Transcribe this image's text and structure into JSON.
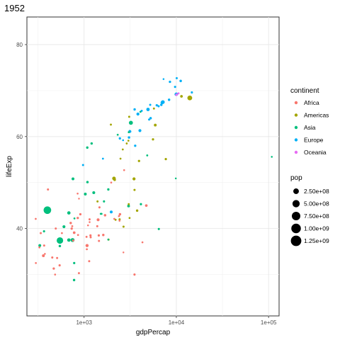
{
  "chart_data": {
    "type": "scatter",
    "title": "1952",
    "xlabel": "gdpPercap",
    "ylabel": "lifeExp",
    "x_scale": "log10",
    "xlim": [
      240,
      130000
    ],
    "ylim": [
      21,
      86
    ],
    "x_ticks": [
      {
        "value": 1000,
        "label": "1e+03"
      },
      {
        "value": 10000,
        "label": "1e+04"
      },
      {
        "value": 100000,
        "label": "1e+05"
      }
    ],
    "y_ticks": [
      {
        "value": 40,
        "label": "40"
      },
      {
        "value": 60,
        "label": "60"
      },
      {
        "value": 80,
        "label": "80"
      }
    ],
    "grid": true,
    "legend_placement": "right",
    "color_legend": {
      "title": "continent",
      "items": [
        {
          "name": "Africa",
          "color": "#F8766D"
        },
        {
          "name": "Americas",
          "color": "#A3A500"
        },
        {
          "name": "Asia",
          "color": "#00BF7D"
        },
        {
          "name": "Europe",
          "color": "#00B0F6"
        },
        {
          "name": "Oceania",
          "color": "#E76BF3"
        }
      ]
    },
    "size_legend": {
      "title": "pop",
      "items": [
        {
          "label": "2.50e+08",
          "value": 250000000
        },
        {
          "label": "5.00e+08",
          "value": 500000000
        },
        {
          "label": "7.50e+08",
          "value": 750000000
        },
        {
          "label": "1.00e+09",
          "value": 1000000000
        },
        {
          "label": "1.25e+09",
          "value": 1250000000
        }
      ]
    },
    "series": [
      {
        "name": "Africa",
        "color": "#F8766D",
        "points": [
          [
            2449,
            43.1,
            9300000.0
          ],
          [
            3521,
            30.0,
            4200000.0
          ],
          [
            1063,
            38.2,
            1700000.0
          ],
          [
            851,
            47.6,
            400000.0
          ],
          [
            543,
            32.0,
            4500000.0
          ],
          [
            339,
            39.0,
            2400000.0
          ],
          [
            1173,
            38.5,
            5000000.0
          ],
          [
            1071,
            35.5,
            1300000.0
          ],
          [
            1179,
            38.1,
            2700000.0
          ],
          [
            1103,
            40.7,
            150000.0
          ],
          [
            781,
            39.1,
            14100000.0
          ],
          [
            2126,
            42.1,
            850000.0
          ],
          [
            1389,
            40.5,
            3000000.0
          ],
          [
            2670,
            34.8,
            60000.0
          ],
          [
            1419,
            41.9,
            22200000.0
          ],
          [
            376,
            34.5,
            200000.0
          ],
          [
            328,
            35.9,
            1400000.0
          ],
          [
            362,
            34.1,
            20900000.0
          ],
          [
            4293,
            37.0,
            420000.0
          ],
          [
            485,
            30.0,
            280000.0
          ],
          [
            911,
            43.1,
            5600000.0
          ],
          [
            510,
            33.6,
            2700000.0
          ],
          [
            300,
            32.5,
            580000.0
          ],
          [
            854,
            42.3,
            6500000.0
          ],
          [
            299,
            42.1,
            750000.0
          ],
          [
            575,
            39.0,
            860000.0
          ],
          [
            2388,
            42.7,
            1000000.0
          ],
          [
            1443,
            38.5,
            4800000.0
          ],
          [
            369,
            36.3,
            2900000.0
          ],
          [
            452,
            33.7,
            3800000.0
          ],
          [
            744,
            40.5,
            1000000.0
          ],
          [
            1968,
            50.0,
            520000.0
          ],
          [
            1688,
            42.9,
            9900000.0
          ],
          [
            469,
            31.3,
            6400000.0
          ],
          [
            2423,
            41.7,
            490000.0
          ],
          [
            762,
            37.4,
            3400000.0
          ],
          [
            1077,
            36.3,
            33100000.0
          ],
          [
            2718,
            52.7,
            260000.0
          ],
          [
            493,
            40.0,
            2500000.0
          ],
          [
            880,
            46.5,
            60000.0
          ],
          [
            1450,
            37.3,
            2800000.0
          ],
          [
            879,
            30.3,
            2100000.0
          ],
          [
            1136,
            32.9,
            2500000.0
          ],
          [
            4725,
            45.0,
            14300000.0
          ],
          [
            1615,
            38.6,
            8500000.0
          ],
          [
            1148,
            41.4,
            290000.0
          ],
          [
            716,
            41.2,
            8300000.0
          ],
          [
            860,
            38.6,
            1200000.0
          ],
          [
            1468,
            44.6,
            3600000.0
          ],
          [
            734,
            39.98,
            5800000.0
          ],
          [
            1147,
            42.0,
            2700000.0
          ],
          [
            406,
            48.5,
            3100000.0
          ]
        ]
      },
      {
        "name": "Americas",
        "color": "#A3A500",
        "points": [
          [
            5911,
            62.5,
            17900000.0
          ],
          [
            2677,
            40.4,
            2900000.0
          ],
          [
            2109,
            50.9,
            56600000.0
          ],
          [
            11367,
            68.75,
            14800000.0
          ],
          [
            3940,
            54.7,
            6400000.0
          ],
          [
            2144,
            50.6,
            12400000.0
          ],
          [
            2627,
            57.2,
            930000.0
          ],
          [
            5587,
            59.4,
            6000000.0
          ],
          [
            1398,
            45.9,
            2500000.0
          ],
          [
            3522,
            48.4,
            3500000.0
          ],
          [
            3048,
            45.3,
            2000000.0
          ],
          [
            2428,
            42.0,
            3100000.0
          ],
          [
            1840,
            37.6,
            3200000.0
          ],
          [
            2195,
            41.9,
            1500000.0
          ],
          [
            2898,
            58.5,
            1400000.0
          ],
          [
            3478,
            50.8,
            30100000.0
          ],
          [
            3112,
            42.3,
            1100000.0
          ],
          [
            2481,
            55.2,
            940000.0
          ],
          [
            1952,
            62.6,
            1600000.0
          ],
          [
            3759,
            43.9,
            8000000.0
          ],
          [
            3082,
            64.3,
            2200000.0
          ],
          [
            3023,
            59.1,
            660000.0
          ],
          [
            13990,
            68.4,
            157500000.0
          ],
          [
            5717,
            66.1,
            2300000.0
          ],
          [
            7690,
            55.1,
            5400000.0
          ]
        ]
      },
      {
        "name": "Asia",
        "color": "#00BF7D",
        "points": [
          [
            779,
            28.8,
            8400000.0
          ],
          [
            9867,
            50.9,
            120000.0
          ],
          [
            684,
            37.5,
            46900000.0
          ],
          [
            368,
            39.4,
            4700000.0
          ],
          [
            400,
            44.0,
            556300000.0
          ],
          [
            3054,
            60.96,
            2100000.0
          ],
          [
            547,
            37.4,
            372000000.0
          ],
          [
            750,
            37.5,
            82100000.0
          ],
          [
            3035,
            44.9,
            17300000.0
          ],
          [
            4130,
            45.3,
            5400000.0
          ],
          [
            4087,
            65.4,
            1600000.0
          ],
          [
            3217,
            63.0,
            86500000.0
          ],
          [
            1547,
            43.2,
            610000.0
          ],
          [
            1088,
            50.1,
            8900000.0
          ],
          [
            1031,
            47.5,
            20900000.0
          ],
          [
            108382,
            55.6,
            160000.0
          ],
          [
            4835,
            55.9,
            1400000.0
          ],
          [
            1831,
            48.5,
            6700000.0
          ],
          [
            786,
            42.2,
            800000.0
          ],
          [
            331,
            36.3,
            20100000.0
          ],
          [
            546,
            36.2,
            9200000.0
          ],
          [
            1829,
            37.6,
            510000.0
          ],
          [
            684,
            43.4,
            41300000.0
          ],
          [
            1273,
            47.8,
            22400000.0
          ],
          [
            6460,
            39.9,
            4000000.0
          ],
          [
            2315,
            60.4,
            1100000.0
          ],
          [
            1083,
            57.6,
            7980000.0
          ],
          [
            1644,
            45.9,
            3700000.0
          ],
          [
            1207,
            58.5,
            8600000.0
          ],
          [
            758,
            50.8,
            21300000.0
          ],
          [
            605,
            40.4,
            26200000.0
          ],
          [
            1516,
            43.2,
            1000000.0
          ],
          [
            781,
            32.5,
            4960000.0
          ]
        ]
      },
      {
        "name": "Europe",
        "color": "#00B0F6",
        "points": [
          [
            1601,
            55.2,
            1300000.0
          ],
          [
            6137,
            66.8,
            6900000.0
          ],
          [
            8343,
            68.0,
            8700000.0
          ],
          [
            974,
            53.8,
            2800000.0
          ],
          [
            2444,
            59.6,
            7300000.0
          ],
          [
            3119,
            61.2,
            3900000.0
          ],
          [
            6877,
            66.9,
            9100000.0
          ],
          [
            9692,
            70.8,
            4300000.0
          ],
          [
            6425,
            66.6,
            4100000.0
          ],
          [
            7030,
            67.4,
            42500000.0
          ],
          [
            7144,
            67.5,
            69100000.0
          ],
          [
            3531,
            65.9,
            7700000.0
          ],
          [
            5264,
            64.0,
            9500000.0
          ],
          [
            7268,
            72.5,
            150000.0
          ],
          [
            5211,
            66.9,
            2950000.0
          ],
          [
            4931,
            65.9,
            47700000.0
          ],
          [
            2647,
            59.2,
            410000.0
          ],
          [
            11150,
            72.1,
            10400000.0
          ],
          [
            10095,
            72.7,
            3300000.0
          ],
          [
            4029,
            61.3,
            25700000.0
          ],
          [
            3068,
            59.8,
            8500000.0
          ],
          [
            3145,
            61.1,
            16600000.0
          ],
          [
            3581,
            58.0,
            6900000.0
          ],
          [
            5074,
            63.7,
            3600000.0
          ],
          [
            4215,
            65.6,
            1500000.0
          ],
          [
            3834,
            64.9,
            28500000.0
          ],
          [
            8528,
            71.9,
            7100000.0
          ],
          [
            14734,
            69.6,
            4800000.0
          ],
          [
            1969,
            43.6,
            22200000.0
          ],
          [
            9980,
            69.2,
            50400000.0
          ]
        ]
      },
      {
        "name": "Oceania",
        "color": "#E76BF3",
        "points": [
          [
            10040,
            69.1,
            8700000.0
          ],
          [
            10557,
            69.4,
            1990000.0
          ]
        ]
      }
    ]
  }
}
